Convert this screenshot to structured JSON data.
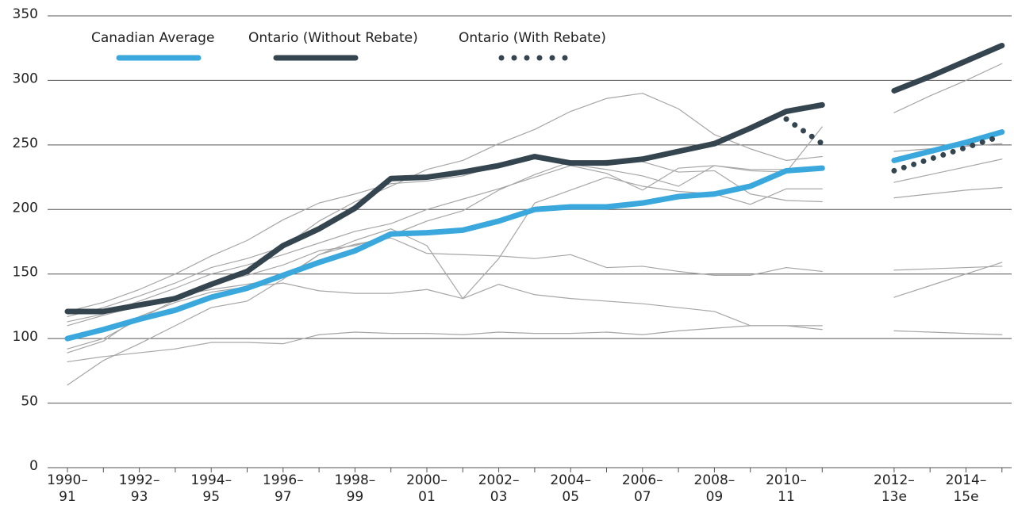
{
  "chart_data": {
    "type": "line",
    "categories": [
      "1990–91",
      null,
      "1992–93",
      null,
      "1994–95",
      null,
      "1996–97",
      null,
      "1998–99",
      null,
      "2000–01",
      null,
      "2002–03",
      null,
      "2004–05",
      null,
      "2006–07",
      null,
      "2008–09",
      null,
      "2010–11",
      null,
      null,
      "2012–13e",
      null,
      "2014–15e",
      null
    ],
    "series": [
      {
        "color": "#a6a6a6",
        "values": [
          117,
          124,
          133,
          143,
          155,
          162,
          171,
          191,
          206,
          218,
          231,
          238,
          251,
          262,
          276,
          286,
          290,
          278,
          258,
          247,
          238,
          241,
          null,
          275,
          288,
          300,
          313
        ]
      },
      {
        "color": "#a6a6a6",
        "values": [
          121,
          128,
          138,
          150,
          164,
          176,
          192,
          205,
          212,
          220,
          222,
          226,
          234,
          240,
          235,
          231,
          226,
          218,
          234,
          230,
          229,
          264,
          null,
          245,
          247,
          249,
          251
        ]
      },
      {
        "color": "#a6a6a6",
        "values": [
          113,
          119,
          129,
          139,
          150,
          157,
          165,
          174,
          183,
          189,
          200,
          208,
          216,
          225,
          234,
          228,
          215,
          232,
          234,
          231,
          231,
          232,
          null,
          221,
          227,
          233,
          239
        ]
      },
      {
        "color": "#a6a6a6",
        "values": [
          92,
          100,
          115,
          130,
          143,
          149,
          157,
          168,
          172,
          180,
          191,
          199,
          215,
          227,
          237,
          238,
          237,
          229,
          230,
          212,
          207,
          206,
          null,
          209,
          212,
          215,
          217
        ]
      },
      {
        "color": "#a6a6a6",
        "values": [
          82,
          86,
          89,
          92,
          97,
          97,
          96,
          103,
          105,
          104,
          104,
          103,
          105,
          104,
          104,
          105,
          103,
          106,
          108,
          110,
          110,
          107,
          null,
          106,
          105,
          104,
          103
        ]
      },
      {
        "color": "#a6a6a6",
        "values": [
          64,
          83,
          96,
          110,
          124,
          129,
          146,
          165,
          176,
          185,
          172,
          131,
          162,
          205,
          215,
          225,
          218,
          214,
          212,
          204,
          216,
          216,
          null,
          null,
          null,
          null,
          null
        ]
      },
      {
        "color": "#a6a6a6",
        "values": [
          89,
          98,
          117,
          128,
          136,
          140,
          143,
          137,
          135,
          135,
          138,
          131,
          142,
          134,
          131,
          129,
          127,
          124,
          121,
          110,
          110,
          110,
          null,
          132,
          141,
          150,
          159
        ]
      },
      {
        "color": "#a6a6a6",
        "values": [
          110,
          118,
          125,
          133,
          138,
          142,
          147,
          165,
          173,
          178,
          166,
          165,
          164,
          162,
          165,
          155,
          156,
          152,
          149,
          149,
          155,
          152,
          null,
          153,
          154,
          155,
          156
        ]
      },
      {
        "name": "Canadian Average",
        "color": "#3aa8dc",
        "values": [
          100,
          107,
          115,
          122,
          132,
          139,
          149,
          159,
          168,
          181,
          182,
          184,
          191,
          200,
          202,
          202,
          205,
          210,
          212,
          218,
          230,
          232,
          null,
          238,
          245,
          252,
          260
        ]
      },
      {
        "name": "Ontario (Without Rebate)",
        "color": "#34454f",
        "values": [
          121,
          121,
          126,
          131,
          142,
          152,
          172,
          185,
          201,
          224,
          225,
          229,
          234,
          241,
          236,
          236,
          239,
          245,
          251,
          263,
          276,
          281,
          null,
          292,
          303,
          315,
          327
        ]
      },
      {
        "name": "Ontario (With Rebate)",
        "color": "#34454f",
        "dash": "dotted",
        "values": [
          null,
          null,
          null,
          null,
          null,
          null,
          null,
          null,
          null,
          null,
          null,
          null,
          null,
          null,
          null,
          null,
          null,
          null,
          null,
          null,
          270,
          251,
          null,
          230,
          239,
          248,
          257
        ]
      }
    ],
    "ylim": [
      0,
      350
    ],
    "yticks": [
      0,
      50,
      100,
      150,
      200,
      250,
      300,
      350
    ],
    "grid": true,
    "legend": "top"
  }
}
